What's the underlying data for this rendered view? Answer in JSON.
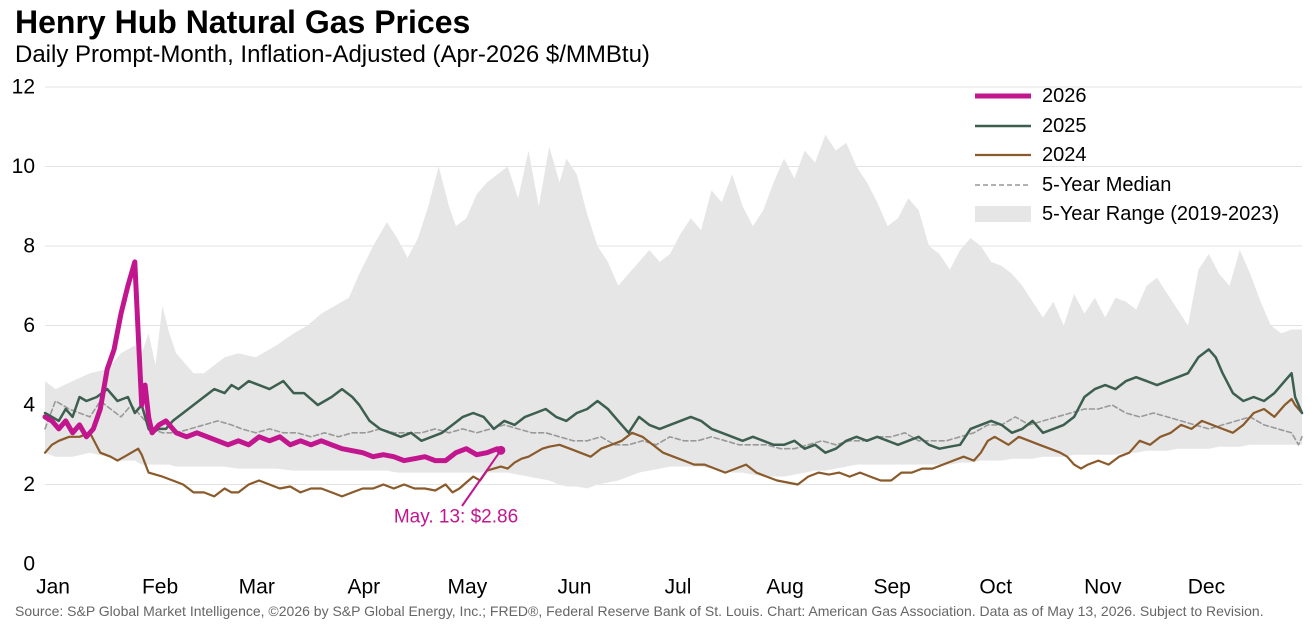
{
  "chart_data": {
    "type": "line",
    "title": "Henry Hub Natural Gas Prices",
    "subtitle": "Daily Prompt-Month, Inflation-Adjusted (Apr-2026 $/MMBtu)",
    "source": "Source: S&P Global Market Intelligence, ©2026 by S&P Global Energy, Inc.; FRED®, Federal Reserve Bank of St. Louis. Chart: American Gas Association. Data as of May 13, 2026. Subject to Revision.",
    "xlabel": "",
    "ylabel": "",
    "x_unit": "day of year",
    "xlim": [
      1,
      365
    ],
    "ylim": [
      0,
      12
    ],
    "yticks": [
      0,
      2,
      4,
      6,
      8,
      10,
      12
    ],
    "xticks": [
      {
        "label": "Jan",
        "day": 1
      },
      {
        "label": "Feb",
        "day": 32
      },
      {
        "label": "Mar",
        "day": 60
      },
      {
        "label": "Apr",
        "day": 91
      },
      {
        "label": "May",
        "day": 121
      },
      {
        "label": "Jun",
        "day": 152
      },
      {
        "label": "Jul",
        "day": 182
      },
      {
        "label": "Aug",
        "day": 213
      },
      {
        "label": "Sep",
        "day": 244
      },
      {
        "label": "Oct",
        "day": 274
      },
      {
        "label": "Nov",
        "day": 305
      },
      {
        "label": "Dec",
        "day": 335
      }
    ],
    "grid": "horizontal",
    "legend_position": "top-right",
    "legend": [
      "2026",
      "2025",
      "2024",
      "5-Year Median",
      "5-Year Range (2019-2023)"
    ],
    "colors": {
      "s2026": "#c2168f",
      "s2025": "#3d5f4f",
      "s2024": "#8a5a2b",
      "median": "#999999",
      "range": "#e6e6e6"
    },
    "range_band": {
      "name": "5-Year Range (2019-2023)",
      "x": [
        1,
        4,
        9,
        14,
        19,
        23,
        27,
        29,
        31,
        33,
        35,
        37,
        39,
        42,
        44,
        47,
        50,
        53,
        57,
        62,
        68,
        73,
        77,
        81,
        85,
        89,
        92,
        96,
        100,
        103,
        106,
        109,
        112,
        115,
        118,
        120,
        123,
        126,
        129,
        132,
        135,
        138,
        141,
        144,
        147,
        150,
        152,
        155,
        158,
        161,
        164,
        167,
        170,
        173,
        176,
        179,
        182,
        185,
        188,
        191,
        194,
        197,
        200,
        203,
        206,
        209,
        212,
        215,
        218,
        221,
        224,
        227,
        230,
        233,
        236,
        239,
        242,
        245,
        248,
        251,
        254,
        257,
        260,
        263,
        266,
        269,
        272,
        275,
        278,
        281,
        284,
        287,
        290,
        293,
        296,
        299,
        302,
        305,
        308,
        311,
        314,
        317,
        320,
        323,
        326,
        329,
        332,
        335,
        338,
        341,
        344,
        347,
        350,
        353,
        356,
        359,
        362,
        365
      ],
      "high": [
        4.6,
        4.4,
        4.6,
        4.8,
        4.9,
        5.3,
        5.5,
        5.3,
        5.8,
        5.0,
        6.5,
        5.8,
        5.3,
        5.0,
        4.8,
        4.8,
        5.0,
        5.2,
        5.3,
        5.2,
        5.5,
        5.8,
        6.0,
        6.3,
        6.5,
        6.7,
        7.3,
        8.0,
        8.6,
        8.2,
        7.7,
        8.2,
        9.0,
        10.0,
        9.0,
        8.5,
        8.7,
        9.3,
        9.6,
        9.8,
        10.0,
        9.2,
        10.4,
        9.0,
        10.5,
        9.6,
        10.2,
        9.8,
        8.8,
        8.0,
        7.6,
        7.0,
        7.3,
        7.6,
        7.9,
        7.6,
        7.8,
        8.3,
        8.7,
        8.4,
        9.4,
        9.1,
        9.8,
        9.0,
        8.5,
        8.9,
        9.6,
        10.2,
        9.7,
        10.4,
        10.1,
        10.8,
        10.4,
        10.6,
        10.0,
        9.6,
        9.1,
        8.5,
        8.7,
        9.2,
        8.9,
        8.0,
        7.8,
        7.4,
        7.9,
        8.2,
        8.0,
        7.6,
        7.5,
        7.3,
        7.0,
        6.6,
        6.2,
        6.6,
        6.0,
        6.8,
        6.3,
        6.7,
        6.2,
        6.7,
        6.6,
        6.4,
        7.0,
        7.2,
        6.8,
        6.4,
        6.0,
        7.4,
        7.8,
        7.3,
        7.0,
        7.9,
        7.3,
        6.6,
        6.0,
        5.8,
        5.9,
        5.9
      ],
      "low": [
        2.8,
        2.7,
        2.7,
        2.8,
        2.7,
        2.6,
        2.6,
        2.5,
        2.5,
        2.5,
        2.5,
        2.5,
        2.45,
        2.45,
        2.45,
        2.45,
        2.45,
        2.45,
        2.4,
        2.4,
        2.4,
        2.35,
        2.35,
        2.35,
        2.35,
        2.35,
        2.35,
        2.35,
        2.35,
        2.3,
        2.3,
        2.3,
        2.3,
        2.3,
        2.3,
        2.3,
        2.3,
        2.3,
        2.3,
        2.3,
        2.3,
        2.25,
        2.2,
        2.15,
        2.1,
        2.0,
        1.95,
        1.95,
        1.9,
        2.0,
        2.05,
        2.1,
        2.2,
        2.3,
        2.35,
        2.4,
        2.45,
        2.45,
        2.45,
        2.45,
        2.4,
        2.35,
        2.3,
        2.3,
        2.25,
        2.2,
        2.2,
        2.2,
        2.25,
        2.3,
        2.35,
        2.35,
        2.4,
        2.45,
        2.5,
        2.5,
        2.5,
        2.5,
        2.5,
        2.5,
        2.5,
        2.5,
        2.5,
        2.5,
        2.55,
        2.55,
        2.6,
        2.6,
        2.6,
        2.65,
        2.65,
        2.65,
        2.7,
        2.7,
        2.7,
        2.75,
        2.75,
        2.75,
        2.75,
        2.75,
        2.8,
        2.8,
        2.85,
        2.85,
        2.85,
        2.9,
        2.9,
        2.9,
        2.9,
        2.95,
        2.95,
        2.95,
        3.0,
        3.0,
        3.0,
        3.0,
        3.0,
        3.0
      ]
    },
    "series": [
      {
        "name": "5-Year Median",
        "style": "dashed",
        "x": [
          1,
          4,
          8,
          11,
          14,
          17,
          20,
          23,
          26,
          29,
          32,
          35,
          39,
          43,
          47,
          51,
          55,
          58,
          62,
          66,
          70,
          74,
          78,
          82,
          86,
          90,
          94,
          98,
          102,
          106,
          110,
          114,
          118,
          122,
          126,
          130,
          134,
          138,
          142,
          146,
          150,
          154,
          158,
          162,
          166,
          170,
          174,
          178,
          182,
          186,
          190,
          194,
          198,
          202,
          206,
          210,
          214,
          218,
          222,
          226,
          230,
          234,
          238,
          242,
          246,
          250,
          254,
          258,
          262,
          266,
          270,
          274,
          278,
          282,
          286,
          290,
          294,
          298,
          302,
          306,
          310,
          314,
          318,
          322,
          326,
          330,
          334,
          338,
          342,
          346,
          350,
          354,
          358,
          362,
          364,
          365
        ],
        "values": [
          3.4,
          4.1,
          3.9,
          3.8,
          3.7,
          4.1,
          3.9,
          3.7,
          4.0,
          3.7,
          3.4,
          3.3,
          3.3,
          3.4,
          3.5,
          3.6,
          3.5,
          3.4,
          3.3,
          3.4,
          3.3,
          3.3,
          3.2,
          3.3,
          3.2,
          3.3,
          3.3,
          3.4,
          3.3,
          3.3,
          3.3,
          3.4,
          3.3,
          3.4,
          3.3,
          3.4,
          3.5,
          3.4,
          3.3,
          3.3,
          3.2,
          3.1,
          3.1,
          3.2,
          3.0,
          3.0,
          3.1,
          3.0,
          3.2,
          3.1,
          3.1,
          3.2,
          3.1,
          3.0,
          3.0,
          3.0,
          2.9,
          2.9,
          3.0,
          3.1,
          3.0,
          3.1,
          3.1,
          3.2,
          3.2,
          3.3,
          3.1,
          3.1,
          3.1,
          3.2,
          3.3,
          3.5,
          3.5,
          3.7,
          3.5,
          3.6,
          3.7,
          3.8,
          3.9,
          3.9,
          4.0,
          3.8,
          3.7,
          3.8,
          3.7,
          3.6,
          3.5,
          3.4,
          3.5,
          3.6,
          3.7,
          3.5,
          3.4,
          3.3,
          3.0,
          3.2
        ]
      },
      {
        "name": "2024",
        "style": "solid",
        "x": [
          1,
          3,
          5,
          8,
          11,
          14,
          17,
          20,
          22,
          24,
          26,
          28,
          29,
          31,
          33,
          35,
          38,
          41,
          44,
          47,
          50,
          53,
          55,
          57,
          60,
          63,
          66,
          69,
          72,
          75,
          78,
          81,
          84,
          87,
          90,
          93,
          96,
          99,
          102,
          105,
          108,
          111,
          114,
          117,
          119,
          121,
          123,
          125,
          127,
          129,
          131,
          133,
          135,
          137,
          139,
          141,
          143,
          145,
          147,
          150,
          153,
          156,
          159,
          162,
          165,
          168,
          171,
          174,
          177,
          180,
          183,
          186,
          189,
          192,
          195,
          198,
          201,
          204,
          207,
          210,
          213,
          216,
          219,
          222,
          225,
          228,
          231,
          234,
          237,
          240,
          243,
          246,
          249,
          252,
          255,
          258,
          261,
          264,
          267,
          270,
          272,
          274,
          276,
          278,
          280,
          283,
          286,
          289,
          292,
          295,
          297,
          299,
          301,
          303,
          306,
          309,
          312,
          315,
          318,
          321,
          324,
          327,
          330,
          333,
          336,
          339,
          342,
          345,
          348,
          351,
          354,
          357,
          360,
          362,
          363,
          364,
          365
        ],
        "values": [
          2.8,
          3.0,
          3.1,
          3.2,
          3.2,
          3.3,
          2.8,
          2.7,
          2.6,
          2.7,
          2.8,
          2.9,
          2.75,
          2.3,
          2.25,
          2.2,
          2.1,
          2.0,
          1.8,
          1.8,
          1.7,
          1.9,
          1.8,
          1.8,
          2.0,
          2.1,
          2.0,
          1.9,
          1.95,
          1.8,
          1.9,
          1.9,
          1.8,
          1.7,
          1.8,
          1.9,
          1.9,
          2.0,
          1.9,
          2.0,
          1.9,
          1.9,
          1.85,
          2.0,
          1.8,
          1.9,
          2.05,
          2.2,
          2.1,
          2.35,
          2.4,
          2.45,
          2.4,
          2.55,
          2.65,
          2.7,
          2.8,
          2.9,
          2.95,
          3.0,
          2.9,
          2.8,
          2.7,
          2.9,
          3.0,
          3.1,
          3.3,
          3.2,
          3.0,
          2.8,
          2.7,
          2.6,
          2.5,
          2.5,
          2.4,
          2.3,
          2.4,
          2.5,
          2.3,
          2.2,
          2.1,
          2.05,
          2.0,
          2.2,
          2.3,
          2.25,
          2.3,
          2.2,
          2.3,
          2.2,
          2.1,
          2.1,
          2.3,
          2.3,
          2.4,
          2.4,
          2.5,
          2.6,
          2.7,
          2.6,
          2.8,
          3.1,
          3.2,
          3.1,
          3.0,
          3.2,
          3.1,
          3.0,
          2.9,
          2.8,
          2.7,
          2.5,
          2.4,
          2.5,
          2.6,
          2.5,
          2.7,
          2.8,
          3.1,
          3.0,
          3.2,
          3.3,
          3.5,
          3.4,
          3.6,
          3.5,
          3.4,
          3.3,
          3.5,
          3.8,
          3.9,
          3.7,
          4.0,
          4.15,
          4.0,
          3.9,
          3.8
        ]
      },
      {
        "name": "2025",
        "style": "solid",
        "x": [
          1,
          3,
          5,
          7,
          9,
          11,
          13,
          16,
          19,
          22,
          25,
          27,
          29,
          31,
          32,
          34,
          36,
          38,
          41,
          44,
          47,
          50,
          53,
          55,
          57,
          60,
          63,
          66,
          70,
          73,
          76,
          80,
          84,
          87,
          90,
          92,
          95,
          98,
          101,
          104,
          107,
          110,
          113,
          116,
          119,
          122,
          125,
          128,
          131,
          134,
          137,
          140,
          143,
          146,
          149,
          152,
          155,
          158,
          161,
          164,
          167,
          170,
          173,
          176,
          179,
          182,
          185,
          188,
          191,
          194,
          197,
          200,
          203,
          206,
          209,
          212,
          215,
          218,
          221,
          224,
          227,
          230,
          233,
          236,
          239,
          242,
          245,
          248,
          251,
          254,
          257,
          260,
          263,
          266,
          269,
          272,
          275,
          278,
          281,
          284,
          287,
          290,
          293,
          296,
          299,
          302,
          305,
          308,
          311,
          314,
          317,
          320,
          323,
          326,
          329,
          332,
          335,
          338,
          340,
          342,
          345,
          348,
          351,
          354,
          357,
          360,
          362,
          363,
          365
        ],
        "values": [
          3.8,
          3.7,
          3.6,
          3.9,
          3.7,
          4.2,
          4.1,
          4.2,
          4.4,
          4.1,
          4.2,
          3.8,
          4.0,
          3.4,
          3.3,
          3.4,
          3.4,
          3.6,
          3.8,
          4.0,
          4.2,
          4.4,
          4.3,
          4.5,
          4.4,
          4.6,
          4.5,
          4.4,
          4.6,
          4.3,
          4.3,
          4.0,
          4.2,
          4.4,
          4.2,
          4.0,
          3.6,
          3.4,
          3.3,
          3.2,
          3.3,
          3.1,
          3.2,
          3.3,
          3.5,
          3.7,
          3.8,
          3.7,
          3.4,
          3.6,
          3.5,
          3.7,
          3.8,
          3.9,
          3.7,
          3.6,
          3.8,
          3.9,
          4.1,
          3.9,
          3.6,
          3.3,
          3.7,
          3.5,
          3.4,
          3.5,
          3.6,
          3.7,
          3.6,
          3.4,
          3.3,
          3.2,
          3.1,
          3.2,
          3.1,
          3.0,
          3.0,
          3.1,
          2.9,
          3.0,
          2.8,
          2.9,
          3.1,
          3.2,
          3.1,
          3.2,
          3.1,
          3.0,
          3.1,
          3.2,
          3.0,
          2.9,
          2.95,
          3.0,
          3.4,
          3.5,
          3.6,
          3.5,
          3.3,
          3.4,
          3.6,
          3.3,
          3.4,
          3.5,
          3.7,
          4.2,
          4.4,
          4.5,
          4.4,
          4.6,
          4.7,
          4.6,
          4.5,
          4.6,
          4.7,
          4.8,
          5.2,
          5.4,
          5.2,
          4.8,
          4.3,
          4.1,
          4.2,
          4.1,
          4.3,
          4.6,
          4.8,
          4.2,
          3.8
        ]
      },
      {
        "name": "2026",
        "style": "solid-bold",
        "x": [
          1,
          3,
          5,
          7,
          9,
          11,
          13,
          15,
          17,
          19,
          21,
          23,
          25,
          27,
          28,
          29,
          30,
          31,
          32,
          34,
          36,
          39,
          42,
          45,
          48,
          51,
          54,
          57,
          60,
          63,
          66,
          69,
          72,
          75,
          78,
          81,
          84,
          87,
          90,
          93,
          96,
          99,
          102,
          105,
          108,
          111,
          114,
          117,
          120,
          123,
          126,
          129,
          132,
          133
        ],
        "values": [
          3.7,
          3.6,
          3.4,
          3.6,
          3.3,
          3.5,
          3.2,
          3.4,
          3.9,
          4.9,
          5.4,
          6.3,
          7.0,
          7.6,
          5.8,
          4.0,
          4.5,
          3.7,
          3.3,
          3.5,
          3.6,
          3.3,
          3.2,
          3.3,
          3.2,
          3.1,
          3.0,
          3.1,
          3.0,
          3.2,
          3.1,
          3.2,
          3.0,
          3.1,
          3.0,
          3.1,
          3.0,
          2.9,
          2.85,
          2.8,
          2.7,
          2.75,
          2.7,
          2.6,
          2.65,
          2.7,
          2.6,
          2.6,
          2.8,
          2.9,
          2.75,
          2.8,
          2.9,
          2.86
        ]
      }
    ],
    "annotation": {
      "text": "May. 13: $2.86",
      "day": 133,
      "value": 2.86
    }
  }
}
